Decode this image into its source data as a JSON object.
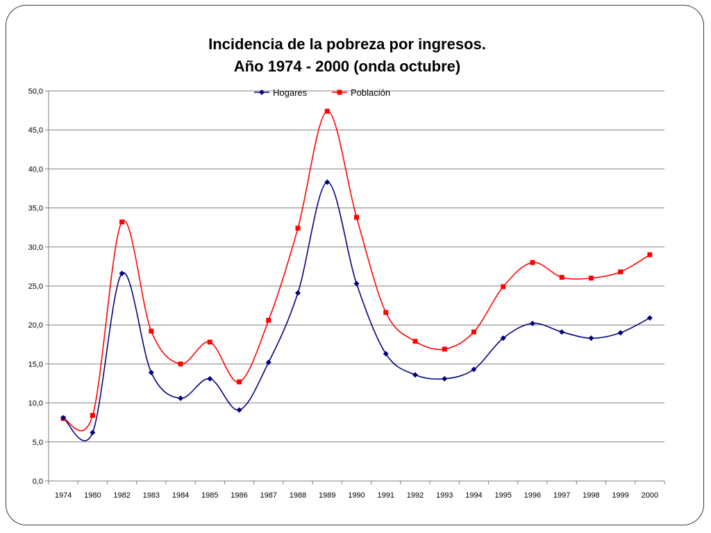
{
  "chart_data": {
    "type": "line",
    "title_line1": "Incidencia de la pobreza por ingresos.",
    "title_line2": "Año 1974 - 2000 (onda octubre)",
    "xlabel": "",
    "ylabel": "",
    "categories": [
      "1974",
      "1980",
      "1982",
      "1983",
      "1984",
      "1985",
      "1986",
      "1987",
      "1988",
      "1989",
      "1990",
      "1991",
      "1992",
      "1993",
      "1994",
      "1995",
      "1996",
      "1997",
      "1998",
      "1999",
      "2000"
    ],
    "ylim": [
      0,
      50
    ],
    "y_ticks": [
      "0,0",
      "5,0",
      "10,0",
      "15,0",
      "20,0",
      "25,0",
      "30,0",
      "35,0",
      "40,0",
      "45,0",
      "50,0"
    ],
    "grid": true,
    "legend_position": "top-center",
    "series": [
      {
        "name": "Hogares",
        "color": "#000080",
        "marker": "diamond",
        "values": [
          8.1,
          6.2,
          26.6,
          13.9,
          10.6,
          13.1,
          9.1,
          15.2,
          24.1,
          38.3,
          25.3,
          16.3,
          13.6,
          13.1,
          14.3,
          18.3,
          20.2,
          19.1,
          18.3,
          19.0,
          20.9
        ]
      },
      {
        "name": "Población",
        "color": "#ff0000",
        "marker": "square",
        "values": [
          8.0,
          8.4,
          33.2,
          19.2,
          15.0,
          17.8,
          12.7,
          20.6,
          32.4,
          47.4,
          33.8,
          21.6,
          17.9,
          16.9,
          19.1,
          24.9,
          28.0,
          26.1,
          26.0,
          26.8,
          29.0
        ]
      }
    ]
  }
}
